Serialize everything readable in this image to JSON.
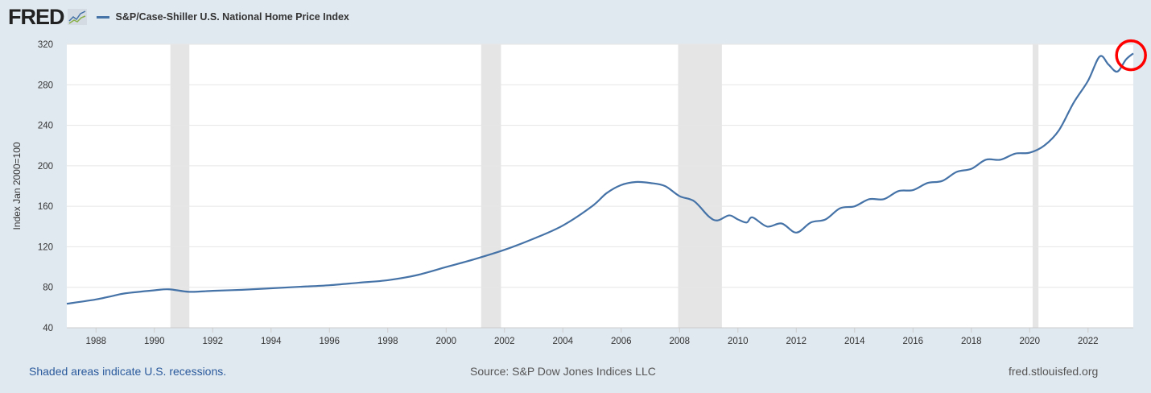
{
  "header": {
    "logo": "FRED",
    "legend_label": "S&P/Case-Shiller U.S. National Home Price Index"
  },
  "footer": {
    "recession_note": "Shaded areas indicate U.S. recessions.",
    "source": "Source: S&P Dow Jones Indices LLC",
    "site": "fred.stlouisfed.org"
  },
  "colors": {
    "line": "#4572a7",
    "recession": "#e5e5e5",
    "highlight": "#ff0000"
  },
  "chart_data": {
    "type": "line",
    "title": "S&P/Case-Shiller U.S. National Home Price Index",
    "xlabel": "",
    "ylabel": "Index Jan 2000=100",
    "xlim": [
      1987.0,
      2023.55
    ],
    "ylim": [
      40,
      320
    ],
    "yticks": [
      40,
      80,
      120,
      160,
      200,
      240,
      280,
      320
    ],
    "xticks": [
      1988,
      1990,
      1992,
      1994,
      1996,
      1998,
      2000,
      2002,
      2004,
      2006,
      2008,
      2010,
      2012,
      2014,
      2016,
      2018,
      2020,
      2022
    ],
    "grid": true,
    "recessions": [
      [
        1990.55,
        1991.2
      ],
      [
        2001.2,
        2001.88
      ],
      [
        2007.95,
        2009.45
      ],
      [
        2020.1,
        2020.3
      ]
    ],
    "highlight_annotation": {
      "shape": "circle",
      "at": [
        2023.5,
        310
      ]
    },
    "series": [
      {
        "name": "S&P/Case-Shiller U.S. National Home Price Index",
        "x": [
          1987.0,
          1988,
          1988.5,
          1989,
          1990,
          1990.5,
          1991.2,
          1992,
          1993,
          1994,
          1995,
          1996,
          1997,
          1998,
          1999,
          2000,
          2001,
          2002,
          2003,
          2004,
          2005,
          2005.5,
          2006,
          2006.5,
          2007,
          2007.5,
          2008,
          2008.5,
          2009,
          2009.3,
          2009.7,
          2010,
          2010.3,
          2010.5,
          2011,
          2011.5,
          2012,
          2012.5,
          2013,
          2013.5,
          2014,
          2014.5,
          2015,
          2015.5,
          2016,
          2016.5,
          2017,
          2017.5,
          2018,
          2018.5,
          2019,
          2019.5,
          2020,
          2020.5,
          2021,
          2021.5,
          2022,
          2022.4,
          2022.7,
          2023.0,
          2023.3,
          2023.55
        ],
        "values": [
          63.7,
          68,
          71,
          74,
          77,
          78,
          75.5,
          76.5,
          77.5,
          79,
          80.5,
          82,
          84.5,
          87,
          92,
          100,
          108,
          117,
          128,
          141,
          160,
          173,
          181,
          184,
          183,
          180,
          170,
          165,
          150,
          146,
          151,
          147,
          144,
          149,
          140,
          143,
          134,
          144,
          147,
          158,
          160,
          167,
          167,
          175,
          176,
          183,
          185,
          194,
          197,
          206,
          206,
          212,
          213,
          220,
          235,
          262,
          284,
          308,
          300,
          293,
          305,
          311
        ]
      }
    ]
  }
}
